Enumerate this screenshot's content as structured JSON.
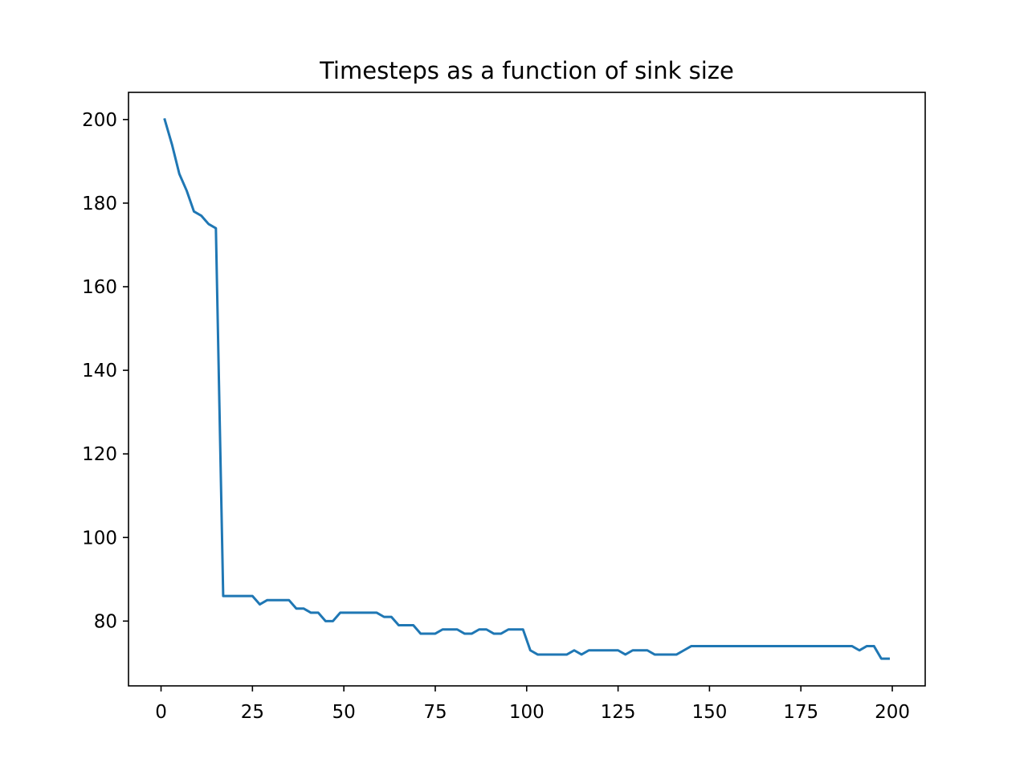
{
  "chart_data": {
    "type": "line",
    "title": "Timesteps as a function of sink size",
    "xlabel": "",
    "ylabel": "",
    "xlim": [
      -8.9,
      209
    ],
    "ylim": [
      64.5,
      206.5
    ],
    "xticks": [
      0,
      25,
      50,
      75,
      100,
      125,
      150,
      175,
      200
    ],
    "yticks": [
      80,
      100,
      120,
      140,
      160,
      180,
      200
    ],
    "grid": false,
    "legend": "none",
    "series": [
      {
        "color": "#1f77b4",
        "x": [
          1,
          3,
          5,
          7,
          9,
          11,
          13,
          15,
          17,
          19,
          21,
          23,
          25,
          27,
          29,
          31,
          33,
          35,
          37,
          39,
          41,
          43,
          45,
          47,
          49,
          51,
          53,
          55,
          57,
          59,
          61,
          63,
          65,
          67,
          69,
          71,
          73,
          75,
          77,
          79,
          81,
          83,
          85,
          87,
          89,
          91,
          93,
          95,
          97,
          99,
          101,
          103,
          105,
          107,
          109,
          111,
          113,
          115,
          117,
          119,
          121,
          123,
          125,
          127,
          129,
          131,
          133,
          135,
          137,
          139,
          141,
          143,
          145,
          147,
          149,
          151,
          153,
          155,
          157,
          159,
          161,
          163,
          165,
          167,
          169,
          171,
          173,
          175,
          177,
          179,
          181,
          183,
          185,
          187,
          189,
          191,
          193,
          195,
          197,
          199
        ],
        "y": [
          200,
          194,
          187,
          183,
          178,
          177,
          175,
          174,
          86,
          86,
          86,
          86,
          86,
          84,
          85,
          85,
          85,
          85,
          83,
          83,
          82,
          82,
          80,
          80,
          82,
          82,
          82,
          82,
          82,
          82,
          81,
          81,
          79,
          79,
          79,
          77,
          77,
          77,
          78,
          78,
          78,
          77,
          77,
          78,
          78,
          77,
          77,
          78,
          78,
          78,
          73,
          72,
          72,
          72,
          72,
          72,
          73,
          72,
          73,
          73,
          73,
          73,
          73,
          72,
          73,
          73,
          73,
          72,
          72,
          72,
          72,
          73,
          74,
          74,
          74,
          74,
          74,
          74,
          74,
          74,
          74,
          74,
          74,
          74,
          74,
          74,
          74,
          74,
          74,
          74,
          74,
          74,
          74,
          74,
          74,
          73,
          74,
          74,
          71,
          71
        ]
      }
    ]
  }
}
